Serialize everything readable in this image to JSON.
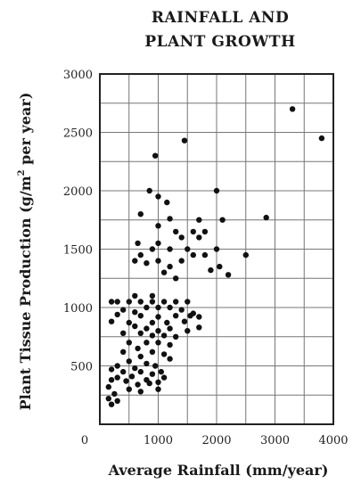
{
  "chart_data": {
    "type": "scatter",
    "title_lines": [
      "RAINFALL AND",
      "PLANT GROWTH"
    ],
    "xlabel": "Average Rainfall (mm/year)",
    "ylabel_parts": [
      "Plant Tissue Production (g/m",
      "2",
      " per year)"
    ],
    "xlim": [
      0,
      4000
    ],
    "ylim": [
      0,
      3000
    ],
    "xticks": [
      0,
      1000,
      2000,
      3000,
      4000
    ],
    "yticks": [
      500,
      1000,
      1500,
      2000,
      2500,
      3000
    ],
    "grid": true,
    "points": [
      [
        3300,
        2700
      ],
      [
        3800,
        2450
      ],
      [
        1450,
        2430
      ],
      [
        950,
        2300
      ],
      [
        850,
        2000
      ],
      [
        2000,
        2000
      ],
      [
        1000,
        1950
      ],
      [
        1150,
        1900
      ],
      [
        700,
        1800
      ],
      [
        2100,
        1750
      ],
      [
        1200,
        1760
      ],
      [
        1700,
        1750
      ],
      [
        2850,
        1770
      ],
      [
        1000,
        1700
      ],
      [
        1300,
        1650
      ],
      [
        1600,
        1650
      ],
      [
        1800,
        1650
      ],
      [
        650,
        1550
      ],
      [
        1000,
        1550
      ],
      [
        1400,
        1600
      ],
      [
        1700,
        1600
      ],
      [
        900,
        1500
      ],
      [
        1200,
        1500
      ],
      [
        1500,
        1500
      ],
      [
        2000,
        1500
      ],
      [
        700,
        1450
      ],
      [
        1800,
        1450
      ],
      [
        2500,
        1450
      ],
      [
        1000,
        1400
      ],
      [
        1400,
        1400
      ],
      [
        1600,
        1450
      ],
      [
        600,
        1400
      ],
      [
        800,
        1380
      ],
      [
        2050,
        1350
      ],
      [
        1200,
        1350
      ],
      [
        1900,
        1320
      ],
      [
        1100,
        1300
      ],
      [
        2200,
        1280
      ],
      [
        600,
        1100
      ],
      [
        200,
        1050
      ],
      [
        300,
        1050
      ],
      [
        500,
        1050
      ],
      [
        700,
        1050
      ],
      [
        900,
        1050
      ],
      [
        1100,
        1050
      ],
      [
        1300,
        1050
      ],
      [
        1500,
        1050
      ],
      [
        800,
        1000
      ],
      [
        1000,
        1000
      ],
      [
        1200,
        1000
      ],
      [
        400,
        980
      ],
      [
        600,
        960
      ],
      [
        1400,
        980
      ],
      [
        1600,
        950
      ],
      [
        300,
        940
      ],
      [
        700,
        930
      ],
      [
        1000,
        920
      ],
      [
        1300,
        930
      ],
      [
        1550,
        930
      ],
      [
        1700,
        920
      ],
      [
        200,
        880
      ],
      [
        500,
        870
      ],
      [
        900,
        870
      ],
      [
        1150,
        870
      ],
      [
        1450,
        880
      ],
      [
        600,
        840
      ],
      [
        800,
        820
      ],
      [
        1000,
        800
      ],
      [
        1200,
        820
      ],
      [
        1500,
        800
      ],
      [
        400,
        780
      ],
      [
        700,
        780
      ],
      [
        900,
        760
      ],
      [
        1100,
        760
      ],
      [
        1300,
        750
      ],
      [
        1700,
        830
      ],
      [
        500,
        700
      ],
      [
        800,
        700
      ],
      [
        1000,
        700
      ],
      [
        1200,
        680
      ],
      [
        650,
        650
      ],
      [
        900,
        620
      ],
      [
        1100,
        600
      ],
      [
        400,
        620
      ],
      [
        700,
        580
      ],
      [
        1200,
        560
      ],
      [
        500,
        540
      ],
      [
        800,
        520
      ],
      [
        950,
        500
      ],
      [
        300,
        500
      ],
      [
        600,
        480
      ],
      [
        200,
        470
      ],
      [
        400,
        450
      ],
      [
        700,
        450
      ],
      [
        900,
        430
      ],
      [
        1050,
        450
      ],
      [
        300,
        400
      ],
      [
        550,
        410
      ],
      [
        800,
        380
      ],
      [
        1000,
        360
      ],
      [
        200,
        380
      ],
      [
        450,
        370
      ],
      [
        650,
        340
      ],
      [
        850,
        350
      ],
      [
        150,
        320
      ],
      [
        500,
        300
      ],
      [
        1000,
        300
      ],
      [
        250,
        260
      ],
      [
        700,
        280
      ],
      [
        150,
        220
      ],
      [
        300,
        200
      ],
      [
        200,
        170
      ],
      [
        1100,
        400
      ],
      [
        1300,
        1250
      ],
      [
        900,
        1100
      ]
    ]
  }
}
